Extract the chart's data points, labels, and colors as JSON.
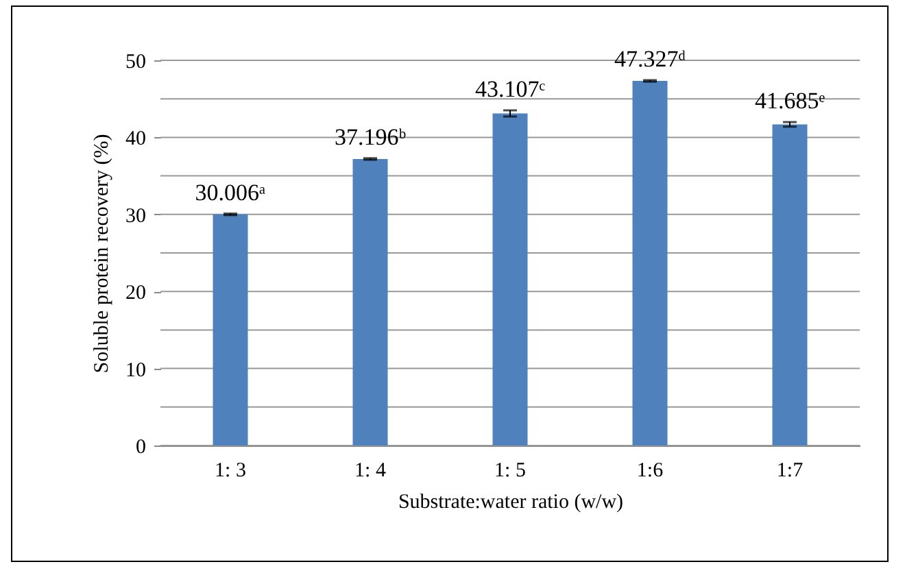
{
  "chart_data": {
    "type": "bar",
    "xlabel": "Substrate:water ratio (w/w)",
    "ylabel": "Soluble protein recovery (%)",
    "categories": [
      "1: 3",
      "1: 4",
      "1: 5",
      "1:6",
      "1:7"
    ],
    "values": [
      30.006,
      37.196,
      43.107,
      47.327,
      41.685
    ],
    "errors": [
      0.1,
      0.1,
      0.4,
      0.1,
      0.3
    ],
    "value_labels": [
      "30.006ᵃ",
      "37.196ᵇ",
      "43.107ᶜ",
      "47.327ᵈ",
      "41.685ᵉ"
    ],
    "color": "#4f81bd",
    "ylim": [
      0,
      50
    ],
    "yticks": [
      0,
      {
        "value": 5,
        "label": null
      },
      10,
      {
        "value": 15,
        "label": null
      },
      20,
      {
        "value": 25,
        "label": null
      },
      30,
      {
        "value": 35,
        "label": null
      },
      40,
      {
        "value": 45,
        "label": null
      },
      50
    ],
    "grid": true
  }
}
